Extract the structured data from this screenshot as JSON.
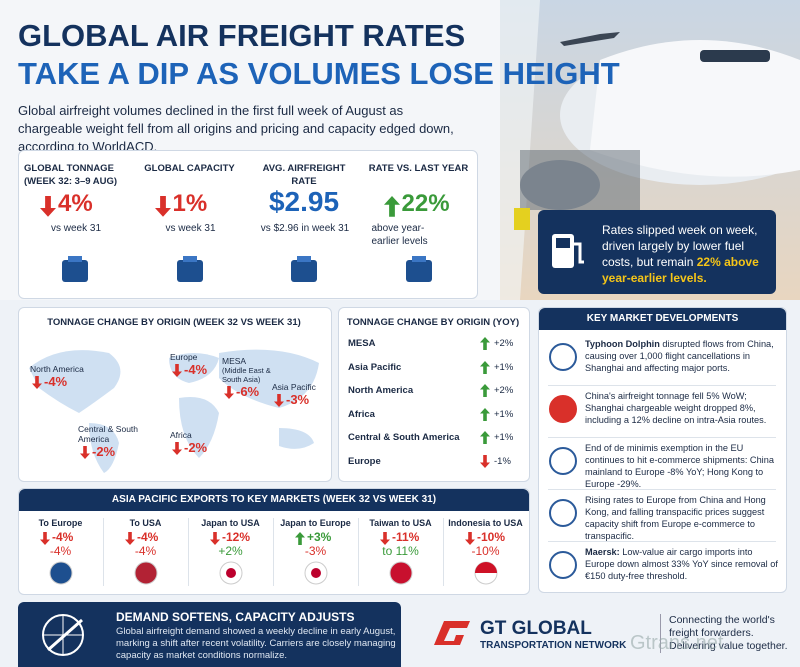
{
  "header": {
    "title_line1": "GLOBAL AIR FREIGHT RATES",
    "title_line2": "TAKE A DIP AS VOLUMES LOSE HEIGHT",
    "intro": "Global airfreight volumes declined in the first full week of August as chargeable weight fell from all origins and pricing and capacity edged down, according to WorldACD."
  },
  "kpis": [
    {
      "label": "GLOBAL TONNAGE (WEEK 32: 3–9 AUG)",
      "value": "4%",
      "note": "vs week 31"
    },
    {
      "label": "GLOBAL CAPACITY",
      "value": "1%",
      "note": "vs week 31"
    },
    {
      "label": "AVG. AIRFREIGHT RATE",
      "value": "$2.95",
      "note": "vs $2.96 in week 31"
    },
    {
      "label": "RATE VS. LAST YEAR",
      "value": "22%",
      "note": "above year-earlier levels"
    }
  ],
  "callout": {
    "text": "Rates slipped week on week, driven largely by lower fuel costs, but remain",
    "highlight": "22% above year-earlier levels."
  },
  "map": {
    "title": "TONNAGE CHANGE BY ORIGIN (WEEK 32 VS WEEK 31)",
    "regions": [
      {
        "name": "North America",
        "value": "-4%"
      },
      {
        "name": "Europe",
        "value": "-4%"
      },
      {
        "name": "MESA",
        "subname": "(Middle East & South Asia)",
        "value": "-6%"
      },
      {
        "name": "Asia Pacific",
        "value": "-3%"
      },
      {
        "name": "Central & South America",
        "value": "-2%"
      },
      {
        "name": "Africa",
        "value": "-2%"
      }
    ]
  },
  "yoy": {
    "title": "TONNAGE CHANGE BY ORIGIN (YOY)",
    "rows": [
      {
        "name": "MESA",
        "value": "+2%"
      },
      {
        "name": "Asia Pacific",
        "value": "+1%"
      },
      {
        "name": "North America",
        "value": "+2%"
      },
      {
        "name": "Africa",
        "value": "+1%"
      },
      {
        "name": "Central & South America",
        "value": "+1%"
      },
      {
        "name": "Europe",
        "value": "-1%"
      }
    ]
  },
  "developments": {
    "title": "KEY MARKET DEVELOPMENTS",
    "items": [
      {
        "lead": "Typhoon Dolphin",
        "text": "disrupted flows from China, causing over 1,000 flight cancellations in Shanghai and affecting major ports."
      },
      {
        "lead": "",
        "text": "China's airfreight tonnage fell 5% WoW; Shanghai chargeable weight dropped 8%, including a 12% decline on intra-Asia routes."
      },
      {
        "lead": "",
        "text": "End of de minimis exemption in the EU continues to hit e-commerce shipments: China mainland to Europe -8% YoY; Hong Kong to Europe -29%."
      },
      {
        "lead": "",
        "text": "Rising rates to Europe from China and Hong Kong, and falling transpacific prices suggest capacity shift from Europe e-commerce to transpacific."
      },
      {
        "lead": "Maersk:",
        "text": "Low-value air cargo imports into Europe down almost 33% YoY since removal of €150 duty-free threshold."
      }
    ]
  },
  "exports": {
    "title": "ASIA PACIFIC EXPORTS TO KEY MARKETS (WEEK 32 VS WEEK 31)",
    "markets": [
      {
        "name": "To Europe",
        "value": "-4%",
        "value2": "-4%"
      },
      {
        "name": "To USA",
        "value": "-4%",
        "value2": "-4%"
      },
      {
        "name": "Japan to USA",
        "value": "-12%",
        "value2": "+2%"
      },
      {
        "name": "Japan to Europe",
        "value": "+3%",
        "value2": "-3%"
      },
      {
        "name": "Taiwan to USA",
        "value": "-11%",
        "value2": "to 11%"
      },
      {
        "name": "Indonesia to USA",
        "value": "-10%",
        "value2": "-10%"
      }
    ]
  },
  "footer": {
    "title": "DEMAND SOFTENS, CAPACITY ADJUSTS",
    "text": "Global airfreight demand showed a weekly decline in early August, marking a shift after recent volatility. Carriers are closely managing capacity as market conditions normalize."
  },
  "brand": {
    "name": "GT GLOBAL",
    "subname": "TRANSPORTATION NETWORK",
    "tagline": "Connecting the world's freight forwarders. Delivering value together.",
    "watermark": "Gtrans.net"
  }
}
